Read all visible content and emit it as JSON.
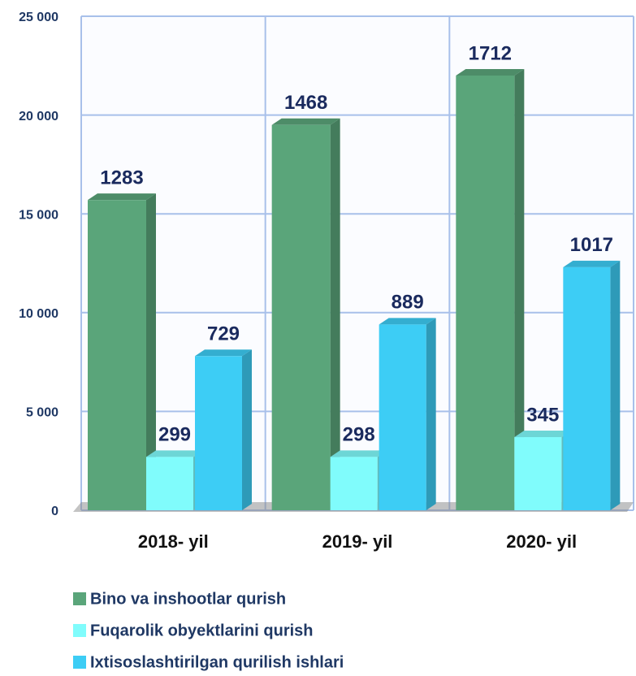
{
  "chart_data": {
    "type": "bar3d",
    "categories": [
      "2018- yil",
      "2019- yil",
      "2020- yil"
    ],
    "series": [
      {
        "name": "Bino va inshootlar qurish",
        "color": "#5aa57a",
        "values": [
          15700,
          19500,
          22000
        ],
        "data_labels": [
          1283,
          1468,
          1712
        ]
      },
      {
        "name": "Fuqarolik obyektlarini qurish",
        "color": "#80fcfc",
        "values": [
          2700,
          2700,
          3700
        ],
        "data_labels": [
          299,
          298,
          345
        ]
      },
      {
        "name": "Ixtisoslashtirilgan qurilish ishlari",
        "color": "#3dcdf5",
        "values": [
          7800,
          9400,
          12300
        ],
        "data_labels": [
          729,
          889,
          1017
        ]
      }
    ],
    "ylim": [
      0,
      25000
    ],
    "yticks": [
      0,
      {
        "value": 5000,
        "label": "5 000"
      },
      {
        "value": 10000,
        "label": "10 000"
      },
      {
        "value": 15000,
        "label": "15 000"
      },
      {
        "value": 20000,
        "label": "20 000"
      },
      {
        "value": 25000,
        "label": "25 000"
      }
    ],
    "grid": true,
    "legend": "bottom"
  }
}
